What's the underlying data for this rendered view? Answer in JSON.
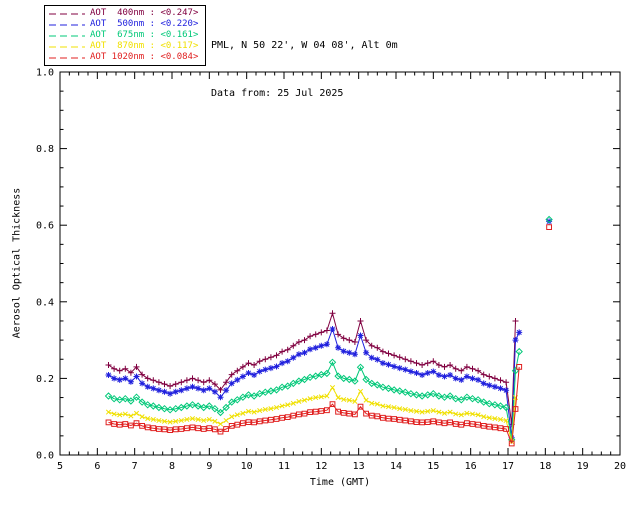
{
  "header": {
    "line1": "PML, N 50 22', W 04 08', Alt 0m",
    "line2": "Data from: 25 Jul 2025"
  },
  "chart_data": {
    "type": "line",
    "title": "",
    "xlabel": "Time (GMT)",
    "ylabel": "Aerosol Optical Thickness",
    "xlim": [
      5,
      20
    ],
    "ylim": [
      0,
      1
    ],
    "grid": false,
    "legend_position": "top-left-outside",
    "x_ticks": {
      "values": [
        5,
        6,
        7,
        8,
        9,
        10,
        11,
        12,
        13,
        14,
        15,
        16,
        17,
        18,
        19,
        20
      ],
      "labels": [
        "5",
        "6",
        "7",
        "8",
        "9",
        "10",
        "11",
        "12",
        "13",
        "14",
        "15",
        "16",
        "17",
        "18",
        "19",
        "20"
      ]
    },
    "y_ticks": {
      "values": [
        0,
        0.2,
        0.4,
        0.6,
        0.8,
        1
      ],
      "labels": [
        "0.0",
        "0.2",
        "0.4",
        "0.6",
        "0.8",
        "1.0"
      ]
    },
    "x": [
      6.3,
      6.45,
      6.6,
      6.75,
      6.9,
      7.05,
      7.2,
      7.35,
      7.5,
      7.65,
      7.8,
      7.95,
      8.1,
      8.25,
      8.4,
      8.55,
      8.7,
      8.85,
      9.0,
      9.15,
      9.3,
      9.45,
      9.6,
      9.75,
      9.9,
      10.05,
      10.2,
      10.35,
      10.5,
      10.65,
      10.8,
      10.95,
      11.1,
      11.25,
      11.4,
      11.55,
      11.7,
      11.85,
      12.0,
      12.15,
      12.3,
      12.45,
      12.6,
      12.75,
      12.9,
      13.05,
      13.2,
      13.35,
      13.5,
      13.65,
      13.8,
      13.95,
      14.1,
      14.25,
      14.4,
      14.55,
      14.7,
      14.85,
      15.0,
      15.15,
      15.3,
      15.45,
      15.6,
      15.75,
      15.9,
      16.05,
      16.2,
      16.35,
      16.5,
      16.65,
      16.8,
      16.95,
      17.1,
      17.2,
      17.3,
      18.1
    ],
    "series": [
      {
        "name": "AOT 400nm",
        "legend_label": "AOT  400nm : <0.247>",
        "mean": 0.247,
        "color": "#800040",
        "marker": "plus",
        "values": [
          0.235,
          0.225,
          0.22,
          0.225,
          0.215,
          0.23,
          0.21,
          0.2,
          0.195,
          0.19,
          0.185,
          0.18,
          0.185,
          0.19,
          0.195,
          0.2,
          0.195,
          0.19,
          0.195,
          0.185,
          0.17,
          0.19,
          0.21,
          0.22,
          0.23,
          0.24,
          0.235,
          0.245,
          0.25,
          0.255,
          0.26,
          0.27,
          0.275,
          0.285,
          0.295,
          0.3,
          0.31,
          0.315,
          0.32,
          0.325,
          0.37,
          0.315,
          0.305,
          0.3,
          0.295,
          0.35,
          0.3,
          0.285,
          0.28,
          0.27,
          0.265,
          0.26,
          0.255,
          0.25,
          0.245,
          0.24,
          0.235,
          0.24,
          0.245,
          0.235,
          0.23,
          0.235,
          0.225,
          0.22,
          0.23,
          0.225,
          0.22,
          0.21,
          0.205,
          0.2,
          0.195,
          0.19,
          0.08,
          0.35,
          null,
          null
        ]
      },
      {
        "name": "AOT 500nm",
        "legend_label": "AOT  500nm : <0.220>",
        "mean": 0.22,
        "color": "#2020dd",
        "marker": "asterisk",
        "values": [
          0.209,
          0.2,
          0.196,
          0.2,
          0.191,
          0.205,
          0.187,
          0.178,
          0.174,
          0.169,
          0.165,
          0.16,
          0.165,
          0.169,
          0.174,
          0.178,
          0.174,
          0.169,
          0.174,
          0.165,
          0.151,
          0.169,
          0.187,
          0.196,
          0.205,
          0.214,
          0.209,
          0.218,
          0.223,
          0.227,
          0.231,
          0.24,
          0.245,
          0.254,
          0.263,
          0.267,
          0.276,
          0.28,
          0.285,
          0.289,
          0.329,
          0.28,
          0.271,
          0.267,
          0.263,
          0.312,
          0.267,
          0.254,
          0.249,
          0.24,
          0.236,
          0.231,
          0.227,
          0.223,
          0.218,
          0.214,
          0.209,
          0.214,
          0.218,
          0.209,
          0.205,
          0.209,
          0.2,
          0.196,
          0.205,
          0.2,
          0.196,
          0.187,
          0.182,
          0.178,
          0.174,
          0.169,
          0.045,
          0.3,
          0.32,
          0.61
        ]
      },
      {
        "name": "AOT 675nm",
        "legend_label": "AOT  675nm : <0.161>",
        "mean": 0.161,
        "color": "#00c878",
        "marker": "diamond",
        "values": [
          0.154,
          0.147,
          0.144,
          0.147,
          0.141,
          0.151,
          0.138,
          0.131,
          0.128,
          0.124,
          0.121,
          0.118,
          0.121,
          0.124,
          0.128,
          0.131,
          0.128,
          0.124,
          0.128,
          0.121,
          0.111,
          0.124,
          0.138,
          0.144,
          0.151,
          0.157,
          0.154,
          0.16,
          0.164,
          0.167,
          0.17,
          0.177,
          0.18,
          0.187,
          0.193,
          0.197,
          0.203,
          0.206,
          0.21,
          0.213,
          0.242,
          0.206,
          0.2,
          0.197,
          0.193,
          0.229,
          0.197,
          0.187,
          0.183,
          0.177,
          0.174,
          0.17,
          0.167,
          0.164,
          0.16,
          0.157,
          0.154,
          0.157,
          0.16,
          0.154,
          0.151,
          0.154,
          0.147,
          0.144,
          0.151,
          0.147,
          0.144,
          0.138,
          0.134,
          0.131,
          0.128,
          0.124,
          0.04,
          0.22,
          0.27,
          0.615
        ]
      },
      {
        "name": "AOT 870nm",
        "legend_label": "AOT  870nm : <0.117>",
        "mean": 0.117,
        "color": "#f0e000",
        "marker": "cross",
        "values": [
          0.112,
          0.107,
          0.105,
          0.107,
          0.102,
          0.109,
          0.1,
          0.095,
          0.093,
          0.09,
          0.088,
          0.086,
          0.088,
          0.09,
          0.093,
          0.095,
          0.093,
          0.09,
          0.093,
          0.088,
          0.081,
          0.09,
          0.1,
          0.105,
          0.109,
          0.114,
          0.112,
          0.116,
          0.119,
          0.121,
          0.124,
          0.128,
          0.131,
          0.135,
          0.14,
          0.143,
          0.147,
          0.15,
          0.152,
          0.154,
          0.176,
          0.15,
          0.145,
          0.143,
          0.14,
          0.166,
          0.143,
          0.135,
          0.133,
          0.128,
          0.126,
          0.124,
          0.121,
          0.119,
          0.116,
          0.114,
          0.112,
          0.114,
          0.116,
          0.112,
          0.109,
          0.112,
          0.107,
          0.105,
          0.109,
          0.107,
          0.105,
          0.1,
          0.097,
          0.095,
          0.093,
          0.09,
          0.035,
          0.15,
          null,
          null
        ]
      },
      {
        "name": "AOT 1020nm",
        "legend_label": "AOT 1020nm : <0.084>",
        "mean": 0.084,
        "color": "#e02020",
        "marker": "square",
        "values": [
          0.085,
          0.081,
          0.079,
          0.081,
          0.077,
          0.083,
          0.076,
          0.072,
          0.07,
          0.068,
          0.067,
          0.065,
          0.067,
          0.068,
          0.07,
          0.072,
          0.07,
          0.068,
          0.07,
          0.067,
          0.061,
          0.068,
          0.076,
          0.079,
          0.083,
          0.086,
          0.085,
          0.088,
          0.09,
          0.092,
          0.094,
          0.097,
          0.099,
          0.103,
          0.106,
          0.108,
          0.112,
          0.113,
          0.115,
          0.117,
          0.133,
          0.113,
          0.11,
          0.108,
          0.106,
          0.126,
          0.108,
          0.103,
          0.101,
          0.097,
          0.095,
          0.094,
          0.092,
          0.09,
          0.088,
          0.086,
          0.085,
          0.086,
          0.088,
          0.085,
          0.083,
          0.085,
          0.081,
          0.079,
          0.083,
          0.081,
          0.079,
          0.076,
          0.074,
          0.072,
          0.07,
          0.068,
          0.03,
          0.12,
          0.23,
          0.595
        ]
      }
    ]
  }
}
